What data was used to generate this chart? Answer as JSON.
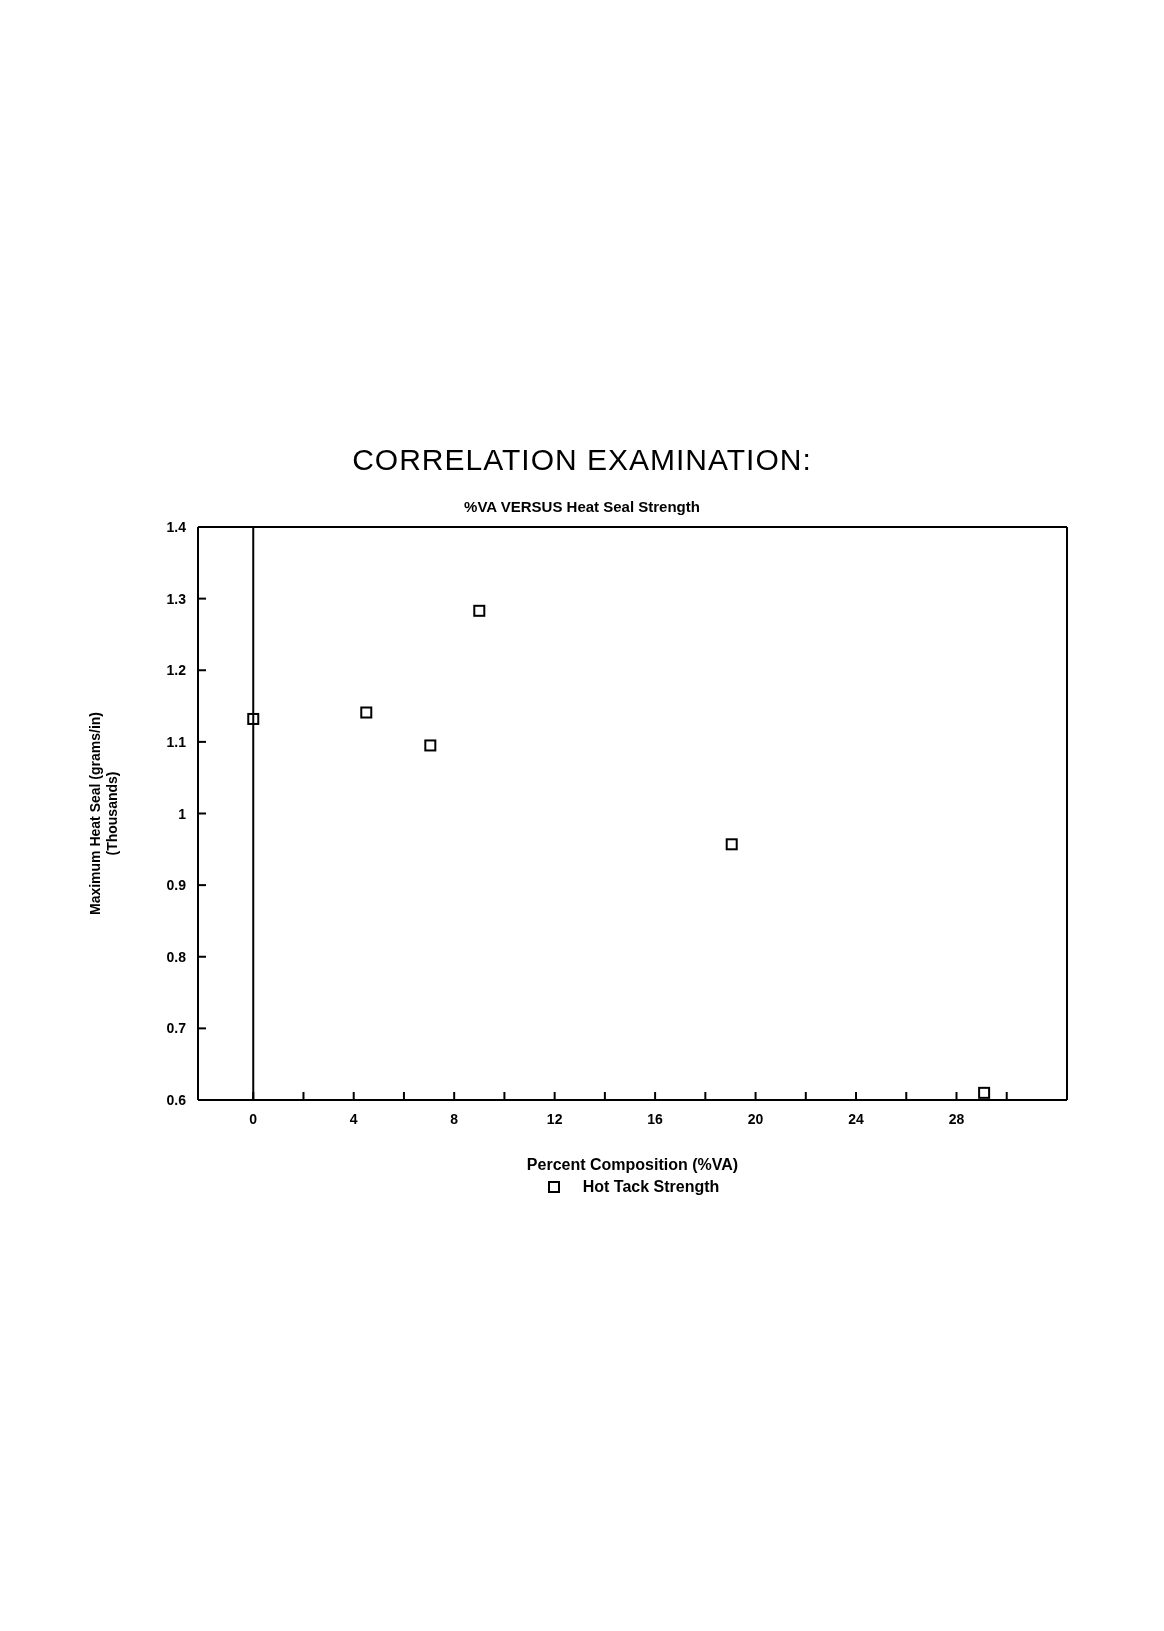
{
  "chart_data": {
    "type": "scatter",
    "title": "CORRELATION EXAMINATION:",
    "subtitle": "%VA VERSUS Heat Seal Strength",
    "xlabel": "Percent Composition (%VA)",
    "ylabel": "Maximum Heat Seal (grams/in)\n(Thousands)",
    "x": [
      0,
      4.5,
      7.05,
      9,
      19.05,
      29.1
    ],
    "series": [
      {
        "name": "Hot Tack Strength",
        "color": "#000000",
        "values": [
          1.132,
          1.141,
          1.095,
          1.283,
          0.957,
          0.61
        ]
      }
    ],
    "xlim": [
      -2.2,
      32.4
    ],
    "xticks": [
      0,
      {
        "value": 2,
        "label": null
      },
      4,
      {
        "value": 6,
        "label": null
      },
      8,
      {
        "value": 10,
        "label": null
      },
      12,
      {
        "value": 14,
        "label": null
      },
      16,
      {
        "value": 18,
        "label": null
      },
      20,
      {
        "value": 22,
        "label": null
      },
      24,
      {
        "value": 26,
        "label": null
      },
      28,
      {
        "value": 30,
        "label": null
      }
    ],
    "ylim": [
      0.6,
      1.4
    ],
    "yticks": [
      0.6,
      0.7,
      0.8,
      0.9,
      1,
      1.1,
      1.2,
      1.3,
      1.4
    ],
    "ref_lines": [
      {
        "axis": "x",
        "value": 0,
        "color": "#000000"
      }
    ],
    "marker": "square",
    "grid": false,
    "legend": "bottom"
  }
}
